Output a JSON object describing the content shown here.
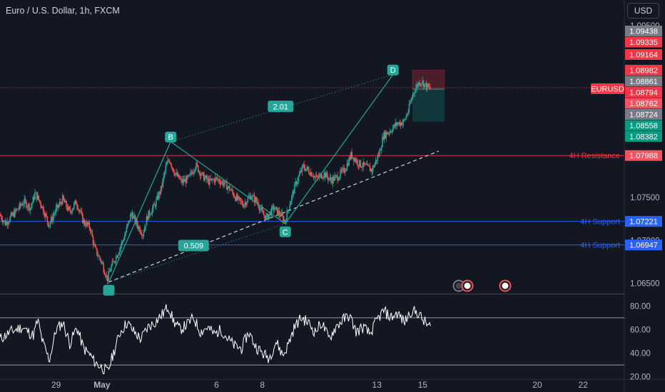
{
  "header": {
    "title": "Euro / U.S. Dollar, 1h, FXCM",
    "currency_button": "USD"
  },
  "colors": {
    "background": "#131722",
    "up": "#26a69a",
    "down": "#ef5350",
    "resistance": "#f23645",
    "support": "#2962ff",
    "pattern": "#26a69a",
    "text": "#d1d4dc",
    "grid": "#2a2e39"
  },
  "chart_data": {
    "type": "candlestick",
    "symbol": "EURUSD",
    "timeframe": "1h",
    "x_ticks": [
      {
        "label": "29",
        "day": -2
      },
      {
        "label": "May",
        "day": 0
      },
      {
        "label": "6",
        "day": 5
      },
      {
        "label": "8",
        "day": 7
      },
      {
        "label": "13",
        "day": 12
      },
      {
        "label": "15",
        "day": 14
      },
      {
        "label": "20",
        "day": 19
      },
      {
        "label": "22",
        "day": 21
      }
    ],
    "x_range_days": [
      -4.45,
      22.8
    ],
    "y_range": [
      1.0638,
      1.0955
    ],
    "y_ticks": [
      "1.09500",
      "1.07500",
      "1.07000",
      "1.06500"
    ],
    "price_path": [
      [
        -4.45,
        1.073
      ],
      [
        -4.2,
        1.072
      ],
      [
        -3.8,
        1.0732
      ],
      [
        -3.4,
        1.0745
      ],
      [
        -3.1,
        1.0738
      ],
      [
        -2.9,
        1.0755
      ],
      [
        -2.6,
        1.074
      ],
      [
        -2.3,
        1.0718
      ],
      [
        -2.0,
        1.0735
      ],
      [
        -1.7,
        1.0748
      ],
      [
        -1.4,
        1.0733
      ],
      [
        -1.1,
        1.0745
      ],
      [
        -0.8,
        1.0722
      ],
      [
        -0.5,
        1.0715
      ],
      [
        -0.3,
        1.069
      ],
      [
        0.0,
        1.0675
      ],
      [
        0.25,
        1.0655
      ],
      [
        0.4,
        1.0668
      ],
      [
        0.7,
        1.0685
      ],
      [
        1.0,
        1.0705
      ],
      [
        1.3,
        1.0732
      ],
      [
        1.55,
        1.0718
      ],
      [
        1.8,
        1.0708
      ],
      [
        2.0,
        1.0728
      ],
      [
        2.3,
        1.074
      ],
      [
        2.6,
        1.076
      ],
      [
        2.8,
        1.0785
      ],
      [
        2.95,
        1.0795
      ],
      [
        3.2,
        1.0778
      ],
      [
        3.5,
        1.0768
      ],
      [
        3.8,
        1.0772
      ],
      [
        4.1,
        1.0788
      ],
      [
        4.4,
        1.0775
      ],
      [
        4.7,
        1.0768
      ],
      [
        5.0,
        1.0772
      ],
      [
        5.3,
        1.0767
      ],
      [
        5.6,
        1.076
      ],
      [
        5.9,
        1.0748
      ],
      [
        6.2,
        1.0742
      ],
      [
        6.5,
        1.0752
      ],
      [
        6.8,
        1.0745
      ],
      [
        7.0,
        1.0732
      ],
      [
        7.2,
        1.0726
      ],
      [
        7.5,
        1.0738
      ],
      [
        7.8,
        1.073
      ],
      [
        8.0,
        1.0722
      ],
      [
        8.2,
        1.0742
      ],
      [
        8.5,
        1.0768
      ],
      [
        8.8,
        1.0786
      ],
      [
        9.1,
        1.078
      ],
      [
        9.4,
        1.0772
      ],
      [
        9.7,
        1.0778
      ],
      [
        10.0,
        1.077
      ],
      [
        10.3,
        1.0774
      ],
      [
        10.6,
        1.0782
      ],
      [
        10.9,
        1.08
      ],
      [
        11.2,
        1.079
      ],
      [
        11.5,
        1.0786
      ],
      [
        11.8,
        1.0782
      ],
      [
        12.1,
        1.08
      ],
      [
        12.3,
        1.0822
      ],
      [
        12.6,
        1.0828
      ],
      [
        12.9,
        1.0836
      ],
      [
        13.2,
        1.0838
      ],
      [
        13.4,
        1.0852
      ],
      [
        13.6,
        1.0872
      ],
      [
        13.8,
        1.0882
      ],
      [
        13.95,
        1.0886
      ],
      [
        14.1,
        1.0881
      ],
      [
        14.3,
        1.0877
      ]
    ],
    "price_levels": [
      {
        "label": "4H Resistance",
        "price": 1.07988,
        "kind": "resistance"
      },
      {
        "label": "4H Support",
        "price": 1.07221,
        "kind": "support"
      },
      {
        "label": "4H Support",
        "price": 1.06947,
        "kind": "support"
      }
    ],
    "symbol_label": "EURUSD",
    "price_labels": [
      {
        "value": "1.09438",
        "price": 1.09438,
        "color": "#787b86"
      },
      {
        "value": "1.09335",
        "price": 1.09335,
        "color": "#f23645"
      },
      {
        "value": "1.09164",
        "price": 1.09164,
        "color": "#f23645"
      },
      {
        "value": "1.08982",
        "price": 1.08982,
        "color": "#f23645"
      },
      {
        "value": "1.08861",
        "price": 1.08861,
        "color": "#787b86"
      },
      {
        "value": "1.08794",
        "price": 1.08794,
        "color": "#f23645"
      },
      {
        "value": "1.08762",
        "price": 1.08762,
        "color": "#f7525f"
      },
      {
        "value": "1.08724",
        "price": 1.08724,
        "color": "#787b86"
      },
      {
        "value": "1.08558",
        "price": 1.08558,
        "color": "#089981"
      },
      {
        "value": "1.08382",
        "price": 1.08382,
        "color": "#089981"
      },
      {
        "value": "1.07988",
        "price": 1.07988,
        "color": "#f7525f"
      },
      {
        "value": "1.07221",
        "price": 1.07221,
        "color": "#2962ff"
      },
      {
        "value": "1.06947",
        "price": 1.06947,
        "color": "#2962ff"
      }
    ],
    "pattern": {
      "points": [
        {
          "label": "",
          "day": 0.3,
          "price": 1.06515
        },
        {
          "label": "B",
          "day": 3.0,
          "price": 1.0815
        },
        {
          "label": "C",
          "day": 8.0,
          "price": 1.07195
        },
        {
          "label": "D",
          "day": 12.7,
          "price": 1.0893
        }
      ],
      "ratios": [
        {
          "label": "2.01",
          "day": 7.8,
          "price": 1.0856
        },
        {
          "label": "0.509",
          "day": 4.0,
          "price": 1.0694
        }
      ]
    },
    "trendline": {
      "from": [
        0.3,
        1.06515
      ],
      "to": [
        14.7,
        1.0804
      ]
    },
    "position": {
      "start_day": 13.55,
      "end_day": 14.95,
      "entry": 1.08762,
      "stop": 1.08982,
      "target": 1.08382
    },
    "rsi": {
      "y_range": [
        18,
        88
      ],
      "y_ticks": [
        "80.00",
        "60.00",
        "40.00",
        "20.00"
      ],
      "upper_band": 70,
      "lower_band": 30,
      "values": [
        [
          -4.45,
          52
        ],
        [
          -4.0,
          58
        ],
        [
          -3.5,
          62
        ],
        [
          -3.0,
          55
        ],
        [
          -2.8,
          68
        ],
        [
          -2.6,
          50
        ],
        [
          -2.3,
          34
        ],
        [
          -2.0,
          60
        ],
        [
          -1.7,
          66
        ],
        [
          -1.4,
          48
        ],
        [
          -1.1,
          62
        ],
        [
          -0.8,
          44
        ],
        [
          -0.5,
          38
        ],
        [
          -0.3,
          32
        ],
        [
          0.0,
          28
        ],
        [
          0.25,
          24
        ],
        [
          0.5,
          40
        ],
        [
          0.8,
          58
        ],
        [
          1.1,
          66
        ],
        [
          1.4,
          58
        ],
        [
          1.7,
          52
        ],
        [
          2.0,
          62
        ],
        [
          2.3,
          66
        ],
        [
          2.6,
          72
        ],
        [
          2.9,
          80
        ],
        [
          3.1,
          68
        ],
        [
          3.4,
          60
        ],
        [
          3.7,
          64
        ],
        [
          4.0,
          70
        ],
        [
          4.3,
          58
        ],
        [
          4.6,
          62
        ],
        [
          4.9,
          56
        ],
        [
          5.2,
          60
        ],
        [
          5.5,
          52
        ],
        [
          5.8,
          46
        ],
        [
          6.1,
          44
        ],
        [
          6.4,
          58
        ],
        [
          6.7,
          46
        ],
        [
          7.0,
          40
        ],
        [
          7.3,
          36
        ],
        [
          7.6,
          50
        ],
        [
          7.9,
          38
        ],
        [
          8.1,
          46
        ],
        [
          8.4,
          62
        ],
        [
          8.7,
          70
        ],
        [
          9.0,
          66
        ],
        [
          9.3,
          58
        ],
        [
          9.6,
          66
        ],
        [
          9.9,
          52
        ],
        [
          10.2,
          62
        ],
        [
          10.5,
          68
        ],
        [
          10.8,
          72
        ],
        [
          11.1,
          58
        ],
        [
          11.4,
          62
        ],
        [
          11.7,
          56
        ],
        [
          12.0,
          68
        ],
        [
          12.3,
          76
        ],
        [
          12.6,
          70
        ],
        [
          12.9,
          74
        ],
        [
          13.2,
          66
        ],
        [
          13.5,
          76
        ],
        [
          13.8,
          74
        ],
        [
          14.0,
          68
        ],
        [
          14.2,
          64
        ],
        [
          14.35,
          62
        ]
      ]
    }
  }
}
